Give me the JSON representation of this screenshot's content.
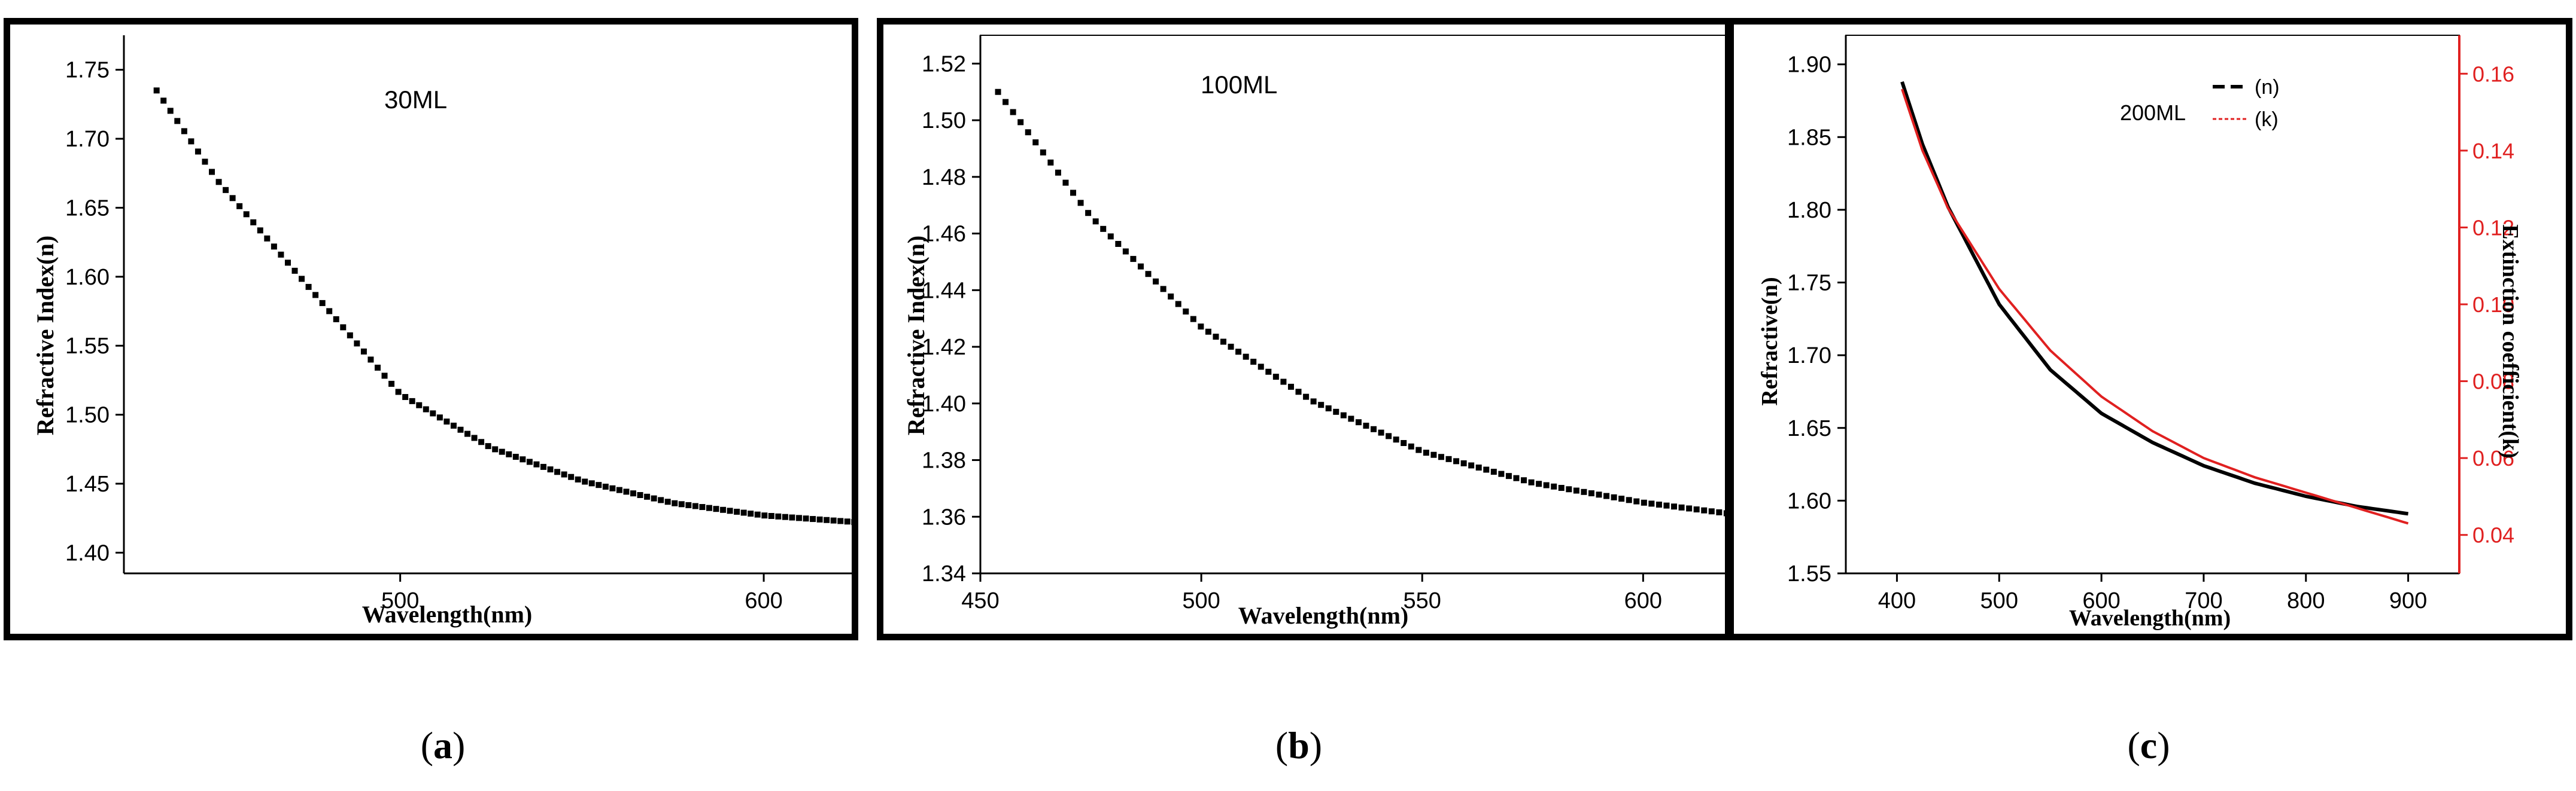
{
  "captions": {
    "a": "a",
    "b": "b",
    "c": "c"
  },
  "chart_data": [
    {
      "id": "a",
      "type": "scatter",
      "title": "",
      "annotation": "30ML",
      "xlabel": "Wavelength(nm)",
      "ylabel": "Refractive Index(n)",
      "xlim": [
        424,
        626
      ],
      "ylim": [
        1.385,
        1.775
      ],
      "xticks": [
        500,
        600
      ],
      "yticks": [
        1.4,
        1.45,
        1.5,
        1.55,
        1.6,
        1.65,
        1.7,
        1.75
      ],
      "ytick_labels": [
        "1.40",
        "1.45",
        "1.50",
        "1.55",
        "1.60",
        "1.65",
        "1.70",
        "1.75"
      ],
      "series": [
        {
          "name": "n",
          "color": "#000000",
          "x_start": 433,
          "x_end": 626,
          "x_step": 1.9,
          "anchors_x": [
            433,
            450,
            475,
            500,
            525,
            550,
            575,
            600,
            626
          ],
          "anchors_y": [
            1.735,
            1.669,
            1.592,
            1.515,
            1.476,
            1.452,
            1.436,
            1.427,
            1.422
          ]
        }
      ]
    },
    {
      "id": "b",
      "type": "scatter",
      "title": "",
      "annotation": "100ML",
      "xlabel": "Wavelength(nm)",
      "ylabel": "Refractive Index(n)",
      "xlim": [
        450,
        620
      ],
      "ylim": [
        1.34,
        1.53
      ],
      "xticks": [
        450,
        500,
        550,
        600
      ],
      "yticks": [
        1.34,
        1.36,
        1.38,
        1.4,
        1.42,
        1.44,
        1.46,
        1.48,
        1.5,
        1.52
      ],
      "ytick_labels": [
        "1.34",
        "1.36",
        "1.38",
        "1.40",
        "1.42",
        "1.44",
        "1.46",
        "1.48",
        "1.50",
        "1.52"
      ],
      "series": [
        {
          "name": "n",
          "color": "#000000",
          "x_start": 454,
          "x_end": 620,
          "x_step": 1.7,
          "anchors_x": [
            454,
            475,
            500,
            525,
            550,
            575,
            600,
            620
          ],
          "anchors_y": [
            1.51,
            1.466,
            1.427,
            1.401,
            1.383,
            1.372,
            1.365,
            1.361
          ]
        }
      ]
    },
    {
      "id": "c",
      "type": "line",
      "title": "",
      "annotation": "200ML",
      "xlabel": "Wavelength(nm)",
      "ylabel": "Refractive(n)",
      "y2label": "Extinction coefficient(k)",
      "xlim": [
        350,
        950
      ],
      "ylim": [
        1.55,
        1.92
      ],
      "y2lim": [
        0.03,
        0.17
      ],
      "xticks": [
        400,
        500,
        600,
        700,
        800,
        900
      ],
      "yticks": [
        1.55,
        1.6,
        1.65,
        1.7,
        1.75,
        1.8,
        1.85,
        1.9
      ],
      "ytick_labels": [
        "1.55",
        "1.60",
        "1.65",
        "1.70",
        "1.75",
        "1.80",
        "1.85",
        "1.90"
      ],
      "y2ticks": [
        0.04,
        0.06,
        0.08,
        0.1,
        0.12,
        0.14,
        0.16
      ],
      "y2tick_labels": [
        "0.04",
        "0.06",
        "0.08",
        "0.10",
        "0.12",
        "0.14",
        "0.16"
      ],
      "legend": {
        "position": "top-right",
        "entries": [
          "(n)",
          "(k)"
        ]
      },
      "series": [
        {
          "name": "(n)",
          "axis": "left",
          "color": "#000000",
          "x": [
            405,
            425,
            450,
            500,
            550,
            600,
            650,
            700,
            750,
            800,
            850,
            900
          ],
          "y": [
            1.888,
            1.845,
            1.802,
            1.735,
            1.69,
            1.66,
            1.64,
            1.624,
            1.612,
            1.603,
            1.596,
            1.591
          ]
        },
        {
          "name": "(k)",
          "axis": "right",
          "color": "#e02020",
          "x": [
            405,
            425,
            450,
            500,
            550,
            600,
            650,
            700,
            750,
            800,
            850,
            900
          ],
          "y": [
            0.156,
            0.14,
            0.125,
            0.104,
            0.088,
            0.076,
            0.067,
            0.06,
            0.055,
            0.051,
            0.047,
            0.043
          ]
        }
      ]
    }
  ]
}
